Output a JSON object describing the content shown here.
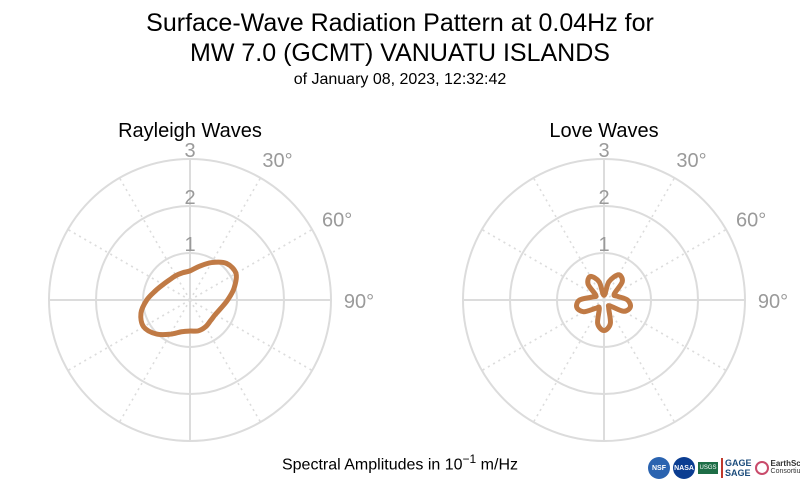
{
  "title": {
    "line1": "Surface-Wave Radiation Pattern at 0.04Hz for",
    "line2": "MW 7.0 (GCMT) VANUATU ISLANDS",
    "subtitle": "of January 08, 2023, 12:32:42"
  },
  "footer": {
    "prefix": "Spectral Amplitudes in ",
    "base": "10",
    "exponent": "−1",
    "unit": " m/Hz"
  },
  "logos": [
    "NSF",
    "NASA",
    "USGS",
    "GAGE",
    "SAGE",
    "EarthScope",
    "Consortium"
  ],
  "colors": {
    "curve": "#c07a45",
    "grid": "#dcdcdc",
    "gridText": "#9a9a9a"
  },
  "chart_data": [
    {
      "type": "polar",
      "title": "Rayleigh Waves",
      "radial_ticks": [
        "1",
        "2",
        "3"
      ],
      "r_max": 3,
      "angle_ticks": [
        "30°",
        "60°",
        "90°"
      ],
      "grid": true,
      "curve_color": "#c07a45",
      "series": [
        {
          "theta_deg": [
            0,
            15,
            30,
            45,
            60,
            75,
            90,
            105,
            120,
            135,
            150,
            165,
            180,
            195,
            210,
            225,
            240,
            255,
            270,
            285,
            300,
            315,
            330,
            345
          ],
          "r": [
            0.62,
            0.74,
            0.92,
            1.1,
            1.13,
            0.97,
            0.8,
            0.68,
            0.62,
            0.62,
            0.66,
            0.68,
            0.66,
            0.7,
            0.84,
            1.02,
            1.14,
            1.08,
            0.92,
            0.76,
            0.66,
            0.61,
            0.6,
            0.6
          ]
        }
      ]
    },
    {
      "type": "polar",
      "title": "Love Waves",
      "radial_ticks": [
        "1",
        "2",
        "3"
      ],
      "r_max": 3,
      "angle_ticks": [
        "30°",
        "60°",
        "90°"
      ],
      "grid": true,
      "curve_color": "#c07a45",
      "series": [
        {
          "theta_deg": [
            0,
            15,
            30,
            45,
            60,
            75,
            90,
            105,
            120,
            135,
            150,
            165,
            180,
            195,
            210,
            225,
            240,
            255,
            270,
            285,
            300,
            315,
            330,
            345
          ],
          "r": [
            0.1,
            0.4,
            0.62,
            0.55,
            0.25,
            0.3,
            0.5,
            0.58,
            0.48,
            0.18,
            0.2,
            0.52,
            0.65,
            0.52,
            0.2,
            0.25,
            0.5,
            0.6,
            0.52,
            0.25,
            0.2,
            0.48,
            0.58,
            0.4
          ]
        }
      ]
    }
  ]
}
